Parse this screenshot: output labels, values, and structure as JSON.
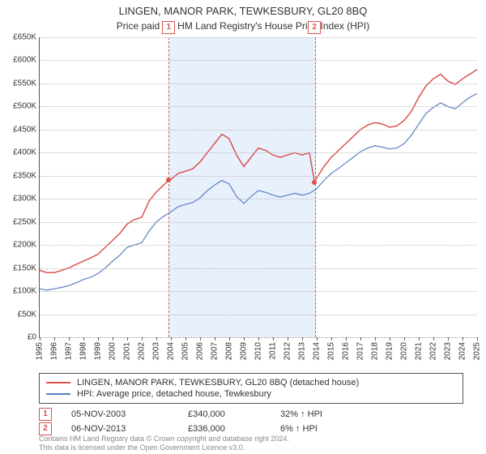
{
  "title": "LINGEN, MANOR PARK, TEWKESBURY, GL20 8BQ",
  "subtitle": "Price paid vs. HM Land Registry's House Price Index (HPI)",
  "chart": {
    "type": "line",
    "background_color": "#ffffff",
    "grid_color": "#bbbbbb",
    "shade_color": "#e8f0fc",
    "shade_border_color": "#d9534f",
    "y": {
      "min": 0,
      "max": 650,
      "step": 50,
      "labels": [
        "£0",
        "£50K",
        "£100K",
        "£150K",
        "£200K",
        "£250K",
        "£300K",
        "£350K",
        "£400K",
        "£450K",
        "£500K",
        "£550K",
        "£600K",
        "£650K"
      ]
    },
    "x": {
      "min": 1995,
      "max": 2025,
      "step": 1,
      "labels": [
        "1995",
        "1996",
        "1997",
        "1998",
        "1999",
        "2000",
        "2001",
        "2002",
        "2003",
        "2004",
        "2005",
        "2006",
        "2007",
        "2008",
        "2009",
        "2010",
        "2011",
        "2012",
        "2013",
        "2014",
        "2015",
        "2016",
        "2017",
        "2018",
        "2019",
        "2020",
        "2021",
        "2022",
        "2023",
        "2024",
        "2025"
      ]
    },
    "shade": {
      "from": 2003.85,
      "to": 2013.85
    },
    "series": [
      {
        "name": "LINGEN, MANOR PARK, TEWKESBURY, GL20 8BQ (detached house)",
        "color": "#d9534f",
        "width": 1.5,
        "data": [
          [
            1995,
            145
          ],
          [
            1995.5,
            140
          ],
          [
            1996,
            140
          ],
          [
            1996.5,
            145
          ],
          [
            1997,
            150
          ],
          [
            1997.5,
            158
          ],
          [
            1998,
            165
          ],
          [
            1998.5,
            172
          ],
          [
            1999,
            180
          ],
          [
            1999.5,
            195
          ],
          [
            2000,
            210
          ],
          [
            2000.5,
            225
          ],
          [
            2001,
            245
          ],
          [
            2001.5,
            255
          ],
          [
            2002,
            260
          ],
          [
            2002.5,
            295
          ],
          [
            2003,
            315
          ],
          [
            2003.5,
            330
          ],
          [
            2003.85,
            340
          ],
          [
            2004,
            342
          ],
          [
            2004.5,
            355
          ],
          [
            2005,
            360
          ],
          [
            2005.5,
            365
          ],
          [
            2006,
            380
          ],
          [
            2006.5,
            400
          ],
          [
            2007,
            420
          ],
          [
            2007.5,
            440
          ],
          [
            2008,
            430
          ],
          [
            2008.5,
            395
          ],
          [
            2009,
            370
          ],
          [
            2009.5,
            390
          ],
          [
            2010,
            410
          ],
          [
            2010.5,
            405
          ],
          [
            2011,
            395
          ],
          [
            2011.5,
            390
          ],
          [
            2012,
            395
          ],
          [
            2012.5,
            400
          ],
          [
            2013,
            395
          ],
          [
            2013.5,
            400
          ],
          [
            2013.85,
            336
          ],
          [
            2014,
            345
          ],
          [
            2014.5,
            370
          ],
          [
            2015,
            390
          ],
          [
            2015.5,
            405
          ],
          [
            2016,
            420
          ],
          [
            2016.5,
            435
          ],
          [
            2017,
            450
          ],
          [
            2017.5,
            460
          ],
          [
            2018,
            465
          ],
          [
            2018.5,
            462
          ],
          [
            2019,
            455
          ],
          [
            2019.5,
            458
          ],
          [
            2020,
            470
          ],
          [
            2020.5,
            490
          ],
          [
            2021,
            520
          ],
          [
            2021.5,
            545
          ],
          [
            2022,
            560
          ],
          [
            2022.5,
            570
          ],
          [
            2023,
            555
          ],
          [
            2023.5,
            548
          ],
          [
            2024,
            560
          ],
          [
            2024.5,
            570
          ],
          [
            2025,
            580
          ]
        ]
      },
      {
        "name": "HPI: Average price, detached house, Tewkesbury",
        "color": "#5b7fbf",
        "width": 1.2,
        "data": [
          [
            1995,
            105
          ],
          [
            1995.5,
            102
          ],
          [
            1996,
            105
          ],
          [
            1996.5,
            108
          ],
          [
            1997,
            112
          ],
          [
            1997.5,
            118
          ],
          [
            1998,
            125
          ],
          [
            1998.5,
            130
          ],
          [
            1999,
            138
          ],
          [
            1999.5,
            150
          ],
          [
            2000,
            165
          ],
          [
            2000.5,
            178
          ],
          [
            2001,
            195
          ],
          [
            2001.5,
            200
          ],
          [
            2002,
            205
          ],
          [
            2002.5,
            230
          ],
          [
            2003,
            250
          ],
          [
            2003.5,
            262
          ],
          [
            2004,
            272
          ],
          [
            2004.5,
            283
          ],
          [
            2005,
            288
          ],
          [
            2005.5,
            292
          ],
          [
            2006,
            302
          ],
          [
            2006.5,
            318
          ],
          [
            2007,
            330
          ],
          [
            2007.5,
            340
          ],
          [
            2008,
            332
          ],
          [
            2008.5,
            305
          ],
          [
            2009,
            290
          ],
          [
            2009.5,
            305
          ],
          [
            2010,
            318
          ],
          [
            2010.5,
            314
          ],
          [
            2011,
            308
          ],
          [
            2011.5,
            304
          ],
          [
            2012,
            308
          ],
          [
            2012.5,
            312
          ],
          [
            2013,
            308
          ],
          [
            2013.5,
            312
          ],
          [
            2014,
            322
          ],
          [
            2014.5,
            340
          ],
          [
            2015,
            355
          ],
          [
            2015.5,
            366
          ],
          [
            2016,
            378
          ],
          [
            2016.5,
            390
          ],
          [
            2017,
            402
          ],
          [
            2017.5,
            410
          ],
          [
            2018,
            415
          ],
          [
            2018.5,
            412
          ],
          [
            2019,
            408
          ],
          [
            2019.5,
            410
          ],
          [
            2020,
            420
          ],
          [
            2020.5,
            438
          ],
          [
            2021,
            462
          ],
          [
            2021.5,
            485
          ],
          [
            2022,
            498
          ],
          [
            2022.5,
            508
          ],
          [
            2023,
            500
          ],
          [
            2023.5,
            495
          ],
          [
            2024,
            508
          ],
          [
            2024.5,
            520
          ],
          [
            2025,
            528
          ]
        ]
      }
    ],
    "markers": [
      {
        "label": "1",
        "x": 2003.85,
        "y": 340
      },
      {
        "label": "2",
        "x": 2013.85,
        "y": 336
      }
    ]
  },
  "legend": [
    {
      "color": "#d9534f",
      "label": "LINGEN, MANOR PARK, TEWKESBURY, GL20 8BQ (detached house)"
    },
    {
      "color": "#5b7fbf",
      "label": "HPI: Average price, detached house, Tewkesbury"
    }
  ],
  "sales": [
    {
      "marker": "1",
      "date": "05-NOV-2003",
      "price": "£340,000",
      "rel": "32% ↑ HPI"
    },
    {
      "marker": "2",
      "date": "06-NOV-2013",
      "price": "£336,000",
      "rel": "6% ↑ HPI"
    }
  ],
  "footer": {
    "line1": "Contains HM Land Registry data © Crown copyright and database right 2024.",
    "line2": "This data is licensed under the Open Government Licence v3.0."
  }
}
